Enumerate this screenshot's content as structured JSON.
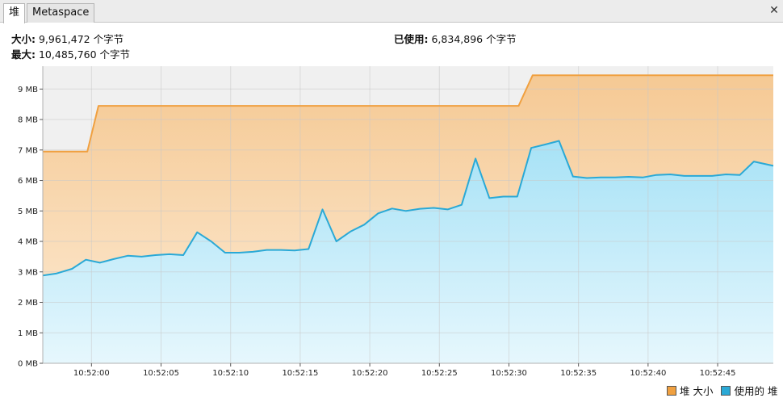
{
  "tabs": [
    {
      "label": "堆",
      "active": true
    },
    {
      "label": "Metaspace",
      "active": false
    }
  ],
  "close_icon": "close-icon",
  "info": {
    "size_label": "大小:",
    "size_value": "9,961,472 个字节",
    "max_label": "最大:",
    "max_value": "10,485,760 个字节",
    "used_label": "已使用:",
    "used_value": "6,834,896 个字节"
  },
  "legend": {
    "heap_size": "堆 大小",
    "used_heap": "使用的 堆"
  },
  "colors": {
    "heap_line": "#f0a040",
    "heap_fill_top": "#f5c994",
    "heap_fill_bottom": "#fdebd4",
    "used_line": "#2aa9d6",
    "used_fill_top": "#a7e2f6",
    "used_fill_bottom": "#e6f7fd",
    "plot_bg": "#f0f0f0"
  },
  "chart_data": {
    "type": "area",
    "xlim": [
      "10:51:56.5",
      "10:52:49.0"
    ],
    "ylim": [
      0,
      9.75
    ],
    "y_unit": "MB",
    "y_ticks": [
      "0 MB",
      "1 MB",
      "2 MB",
      "3 MB",
      "4 MB",
      "5 MB",
      "6 MB",
      "7 MB",
      "8 MB",
      "9 MB"
    ],
    "x_ticks": [
      "10:52:00",
      "10:52:05",
      "10:52:10",
      "10:52:15",
      "10:52:20",
      "10:52:25",
      "10:52:30",
      "10:52:35",
      "10:52:40",
      "10:52:45"
    ],
    "grid": true,
    "legend_position": "bottom-right",
    "series": [
      {
        "name": "堆 大小",
        "points": [
          [
            "10:51:56.5",
            6.95
          ],
          [
            "10:51:59.7",
            6.95
          ],
          [
            "10:52:00.5",
            8.45
          ],
          [
            "10:52:30.7",
            8.45
          ],
          [
            "10:52:31.7",
            9.45
          ],
          [
            "10:52:49.0",
            9.45
          ]
        ]
      },
      {
        "name": "使用的 堆",
        "points": [
          [
            "10:51:56.5",
            2.88
          ],
          [
            "10:51:57.5",
            2.95
          ],
          [
            "10:51:58.6",
            3.1
          ],
          [
            "10:51:59.6",
            3.4
          ],
          [
            "10:52:00.6",
            3.3
          ],
          [
            "10:52:01.6",
            3.42
          ],
          [
            "10:52:02.6",
            3.53
          ],
          [
            "10:52:03.6",
            3.5
          ],
          [
            "10:52:04.6",
            3.55
          ],
          [
            "10:52:05.6",
            3.58
          ],
          [
            "10:52:06.6",
            3.55
          ],
          [
            "10:52:07.6",
            4.3
          ],
          [
            "10:52:08.6",
            4.0
          ],
          [
            "10:52:09.6",
            3.63
          ],
          [
            "10:52:10.6",
            3.63
          ],
          [
            "10:52:11.6",
            3.66
          ],
          [
            "10:52:12.6",
            3.72
          ],
          [
            "10:52:13.6",
            3.72
          ],
          [
            "10:52:14.6",
            3.7
          ],
          [
            "10:52:15.6",
            3.75
          ],
          [
            "10:52:16.6",
            5.05
          ],
          [
            "10:52:17.6",
            4.0
          ],
          [
            "10:52:18.6",
            4.32
          ],
          [
            "10:52:19.6",
            4.55
          ],
          [
            "10:52:20.6",
            4.92
          ],
          [
            "10:52:21.6",
            5.08
          ],
          [
            "10:52:22.6",
            5.0
          ],
          [
            "10:52:23.6",
            5.07
          ],
          [
            "10:52:24.6",
            5.1
          ],
          [
            "10:52:25.6",
            5.05
          ],
          [
            "10:52:26.6",
            5.2
          ],
          [
            "10:52:27.6",
            6.72
          ],
          [
            "10:52:28.6",
            5.42
          ],
          [
            "10:52:29.6",
            5.47
          ],
          [
            "10:52:30.6",
            5.47
          ],
          [
            "10:52:31.6",
            7.07
          ],
          [
            "10:52:32.6",
            7.18
          ],
          [
            "10:52:33.6",
            7.3
          ],
          [
            "10:52:34.6",
            6.13
          ],
          [
            "10:52:35.6",
            6.08
          ],
          [
            "10:52:36.6",
            6.1
          ],
          [
            "10:52:37.6",
            6.1
          ],
          [
            "10:52:38.6",
            6.12
          ],
          [
            "10:52:39.6",
            6.1
          ],
          [
            "10:52:40.6",
            6.18
          ],
          [
            "10:52:41.6",
            6.2
          ],
          [
            "10:52:42.6",
            6.15
          ],
          [
            "10:52:43.6",
            6.15
          ],
          [
            "10:52:44.6",
            6.15
          ],
          [
            "10:52:45.6",
            6.2
          ],
          [
            "10:52:46.6",
            6.18
          ],
          [
            "10:52:47.6",
            6.62
          ],
          [
            "10:52:49.0",
            6.48
          ]
        ]
      }
    ]
  }
}
